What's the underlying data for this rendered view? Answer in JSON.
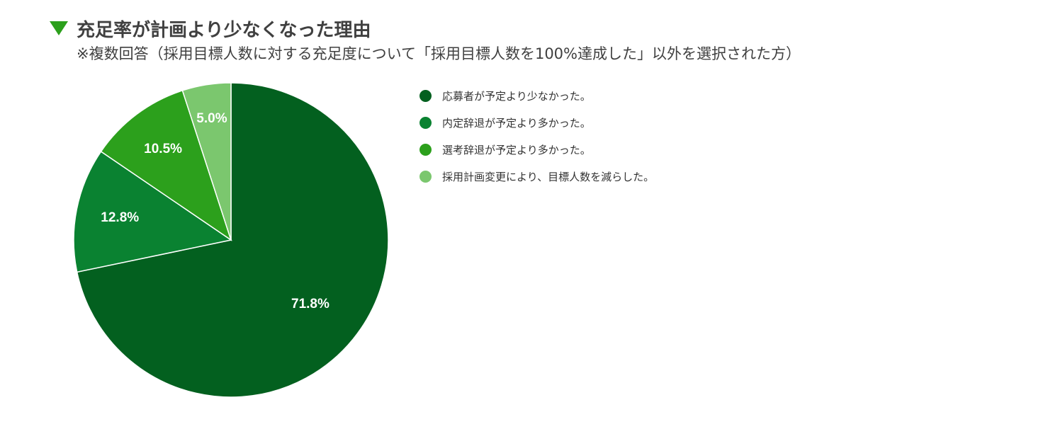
{
  "header": {
    "title": "充足率が計画より少なくなった理由",
    "subtitle": "※複数回答（採用目標人数に対する充足度について「採用目標人数を100%達成した」以外を選択された方）"
  },
  "chart_data": {
    "type": "pie",
    "categories": [
      "応募者が予定より少なかった。",
      "内定辞退が予定より多かった。",
      "選考辞退が予定より多かった。",
      "採用計画変更により、目標人数を減らした。"
    ],
    "values": [
      71.8,
      12.8,
      10.5,
      5.0
    ],
    "data_labels": [
      "71.8%",
      "12.8%",
      "10.5%",
      "5.0%"
    ],
    "colors": [
      "#03601f",
      "#0a8231",
      "#2ca01c",
      "#7bc76e"
    ],
    "legend_position": "right",
    "start_angle": "12 o'clock",
    "direction": "clockwise"
  }
}
